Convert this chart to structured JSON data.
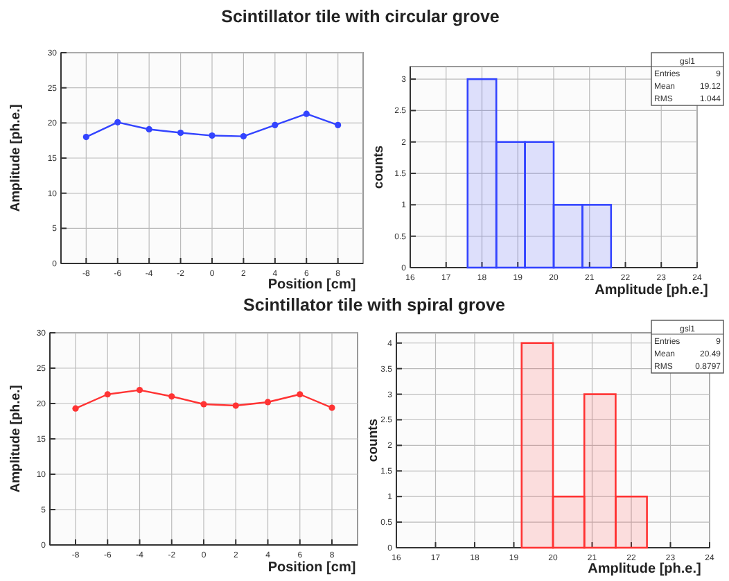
{
  "chart_data": [
    {
      "type": "line",
      "title": "Scintillator tile with circular grove",
      "xlabel": "Position [cm]",
      "ylabel": "Amplitude [ph.e.]",
      "x": [
        -8,
        -6,
        -4,
        -2,
        0,
        2,
        4,
        6,
        8
      ],
      "series": [
        {
          "color": "#3344ff",
          "values": [
            18,
            20.1,
            19.1,
            18.6,
            18.2,
            18.1,
            19.7,
            21.3,
            19.7
          ]
        }
      ],
      "xlim": [
        -9.6,
        9.6
      ],
      "xticks": [
        -8,
        -6,
        -4,
        -2,
        0,
        2,
        4,
        6,
        8
      ],
      "ylim": [
        0,
        30
      ],
      "yticks": [
        0,
        5,
        10,
        15,
        20,
        25,
        30
      ],
      "grid": true,
      "marker": "circle",
      "line_style": "solid"
    },
    {
      "type": "histogram",
      "xlabel": "Amplitude [ph.e.]",
      "ylabel": "counts",
      "bins": [
        16,
        16.8,
        17.6,
        18.4,
        19.2,
        20,
        20.8,
        21.6,
        22.4,
        23.2,
        24
      ],
      "values": [
        0,
        0,
        3,
        2,
        2,
        1,
        1,
        0,
        0,
        0
      ],
      "color": "#3344ff",
      "xlim": [
        16,
        24
      ],
      "xticks": [
        16,
        17,
        18,
        19,
        20,
        21,
        22,
        23,
        24
      ],
      "ylim": [
        0,
        3.2
      ],
      "yticks": [
        0,
        0.5,
        1,
        1.5,
        2,
        2.5,
        3
      ],
      "grid": true,
      "annotations": [
        "gsl1",
        "Entries 9",
        "Mean 19.12",
        "RMS 1.044"
      ]
    },
    {
      "type": "line",
      "title": "Scintillator tile with spiral grove",
      "xlabel": "Position [cm]",
      "ylabel": "Amplitude [ph.e.]",
      "x": [
        -8,
        -6,
        -4,
        -2,
        0,
        2,
        4,
        6,
        8
      ],
      "series": [
        {
          "color": "#ff3333",
          "values": [
            19.3,
            21.3,
            21.9,
            21,
            19.9,
            19.7,
            20.2,
            21.3,
            19.4
          ]
        }
      ],
      "xlim": [
        -9.6,
        9.6
      ],
      "xticks": [
        -8,
        -6,
        -4,
        -2,
        0,
        2,
        4,
        6,
        8
      ],
      "ylim": [
        0,
        30
      ],
      "yticks": [
        0,
        5,
        10,
        15,
        20,
        25,
        30
      ],
      "grid": true,
      "marker": "circle",
      "line_style": "solid"
    },
    {
      "type": "histogram",
      "xlabel": "Amplitude [ph.e.]",
      "ylabel": "counts",
      "bins": [
        16,
        16.8,
        17.6,
        18.4,
        19.2,
        20,
        20.8,
        21.6,
        22.4,
        23.2,
        24
      ],
      "values": [
        0,
        0,
        0,
        0,
        4,
        1,
        3,
        1,
        0,
        0
      ],
      "color": "#ff3333",
      "xlim": [
        16,
        24
      ],
      "xticks": [
        16,
        17,
        18,
        19,
        20,
        21,
        22,
        23,
        24
      ],
      "ylim": [
        0,
        4.2
      ],
      "yticks": [
        0,
        0.5,
        1,
        1.5,
        2,
        2.5,
        3,
        3.5,
        4
      ],
      "grid": true,
      "annotations": [
        "gsl1",
        "Entries 9",
        "Mean 20.49",
        "RMS 0.8797"
      ]
    }
  ]
}
